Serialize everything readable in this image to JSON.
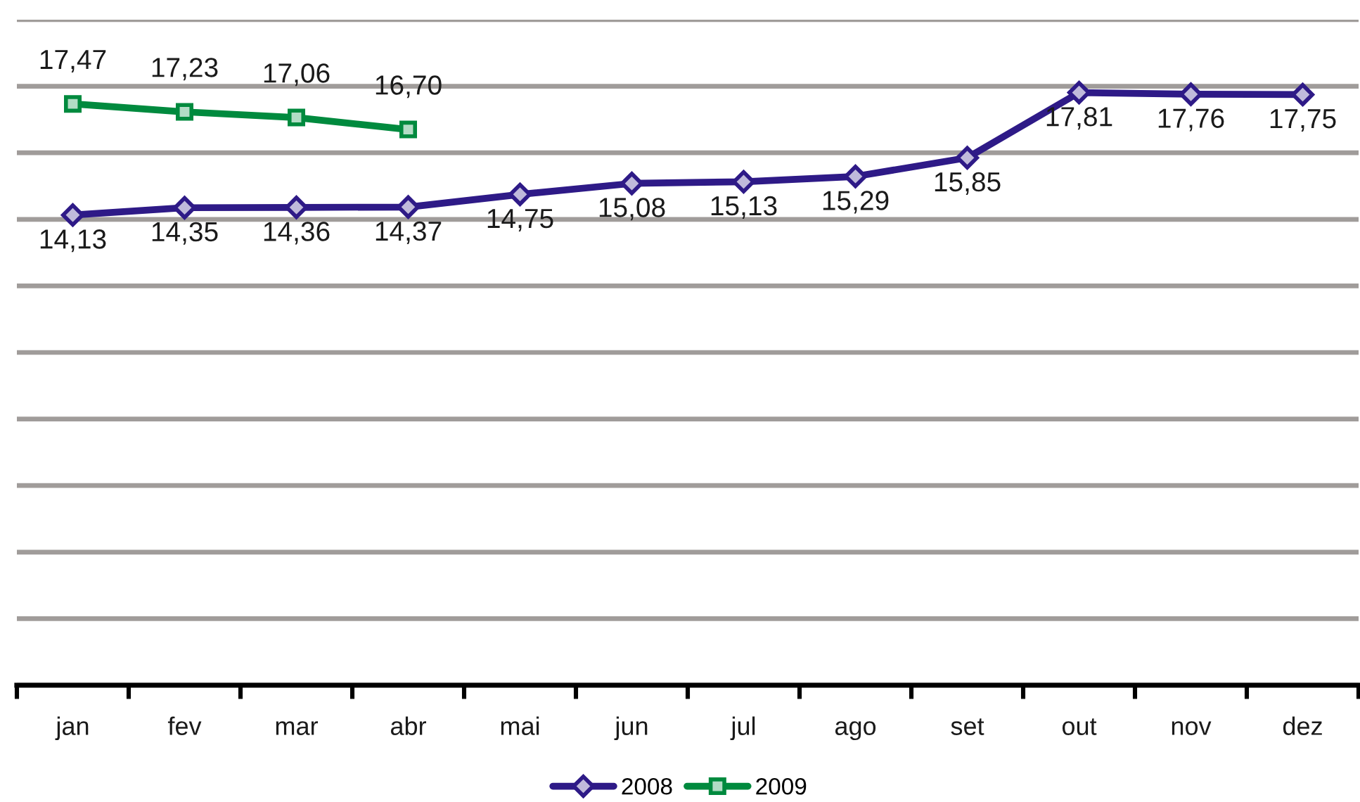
{
  "chart_data": {
    "type": "line",
    "categories": [
      "jan",
      "fev",
      "mar",
      "abr",
      "mai",
      "jun",
      "jul",
      "ago",
      "set",
      "out",
      "nov",
      "dez"
    ],
    "series": [
      {
        "name": "2008",
        "color": "#2e1a87",
        "marker": "diamond",
        "values": [
          14.13,
          14.35,
          14.36,
          14.37,
          14.75,
          15.08,
          15.13,
          15.29,
          15.85,
          17.81,
          17.76,
          17.75
        ],
        "value_labels": [
          "14,13",
          "14,35",
          "14,36",
          "14,37",
          "14,75",
          "15,08",
          "15,13",
          "15,29",
          "15,85",
          "17,81",
          "17,76",
          "17,75"
        ]
      },
      {
        "name": "2009",
        "color": "#008a3e",
        "marker": "square",
        "values": [
          17.47,
          17.23,
          17.06,
          16.7,
          null,
          null,
          null,
          null,
          null,
          null,
          null,
          null
        ],
        "value_labels": [
          "17,47",
          "17,23",
          "17,06",
          "16,70",
          null,
          null,
          null,
          null,
          null,
          null,
          null,
          null
        ]
      }
    ],
    "ylim": [
      0,
      20
    ],
    "yticks": [
      {
        "value": 0,
        "label": null
      },
      {
        "value": 2,
        "label": null
      },
      {
        "value": 4,
        "label": null
      },
      {
        "value": 6,
        "label": null
      },
      {
        "value": 8,
        "label": null
      },
      {
        "value": 10,
        "label": null
      },
      {
        "value": 12,
        "label": null
      },
      {
        "value": 14,
        "label": null
      },
      {
        "value": 16,
        "label": null
      },
      {
        "value": 18,
        "label": null
      },
      {
        "value": 20,
        "label": null
      }
    ],
    "tick_labels": "x",
    "grid": "y",
    "legend": "bottom",
    "line_style": "solid"
  }
}
